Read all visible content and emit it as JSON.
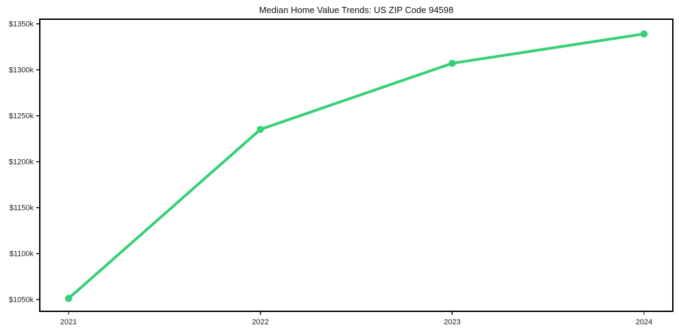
{
  "title": "Median Home Value Trends: US ZIP Code 94598",
  "colors": {
    "line": "#36d076",
    "marker": "#36d076",
    "axis": "#000000",
    "tick_text": "#1a1a1a",
    "background": "#ffffff"
  },
  "chart_data": {
    "type": "line",
    "x": [
      2021,
      2022,
      2023,
      2024
    ],
    "values": [
      1051,
      1235,
      1307,
      1339
    ],
    "title": "Median Home Value Trends: US ZIP Code 94598",
    "xlabel": "",
    "ylabel": "",
    "x_tick_labels": [
      "2021",
      "2022",
      "2023",
      "2024"
    ],
    "y_ticks": [
      1050,
      1100,
      1150,
      1200,
      1250,
      1300,
      1350
    ],
    "y_tick_labels": [
      "$1050k",
      "$1100k",
      "$1150k",
      "$1200k",
      "$1250k",
      "$1300k",
      "$1350k"
    ],
    "ylim": [
      1037,
      1355
    ],
    "xlim": [
      -0.15,
      3.15
    ],
    "grid": false,
    "legend": false,
    "frame": "box"
  }
}
